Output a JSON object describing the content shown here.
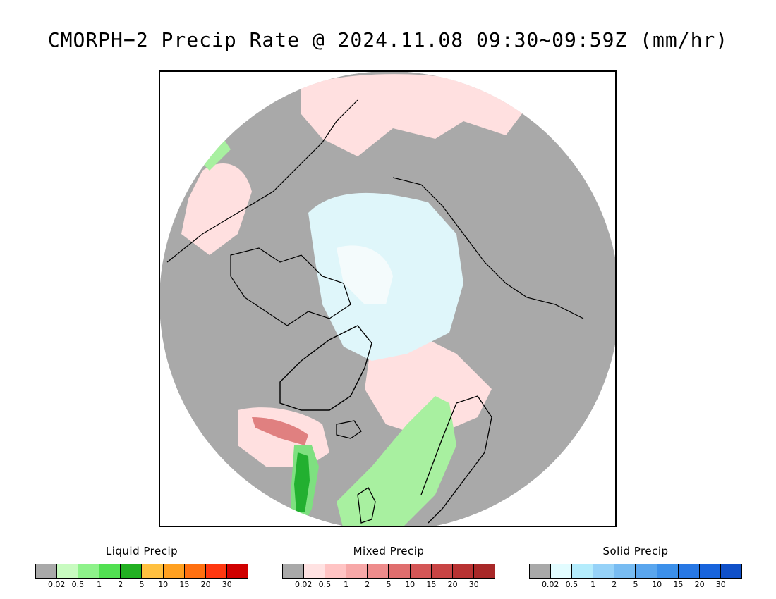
{
  "title": "CMORPH−2 Precip Rate @ 2024.11.08 09:30~09:59Z (mm/hr)",
  "map": {
    "projection": "polar stereographic (north)",
    "colors": {
      "no_precip": "#a9a9a9",
      "mixed_light": "#ffe0e0",
      "solid_light": "#dff6fa",
      "solid_very_light": "#f4fbfc",
      "liquid_light": "#a8f0a0",
      "liquid_mid": "#7ee080",
      "liquid_heavy": "#22b030",
      "mixed_mid": "#f4b0b0",
      "mixed_heavy": "#e08080",
      "coastline": "#000000"
    }
  },
  "legends": [
    {
      "title": "Liquid Precip",
      "colors": [
        "#a9a9a9",
        "#c8fbc0",
        "#8ef28a",
        "#52e052",
        "#22b022",
        "#ffc040",
        "#ffa020",
        "#ff7010",
        "#ff3810",
        "#d00000"
      ],
      "ticks": [
        "0.02",
        "0.5",
        "1",
        "2",
        "5",
        "10",
        "15",
        "20",
        "30"
      ]
    },
    {
      "title": "Mixed Precip",
      "colors": [
        "#a9a9a9",
        "#ffe2e2",
        "#ffc4c4",
        "#f7a8a8",
        "#ee8c8c",
        "#e06e6e",
        "#d45656",
        "#c84444",
        "#b83232",
        "#a82828"
      ],
      "ticks": [
        "0.02",
        "0.5",
        "1",
        "2",
        "5",
        "10",
        "15",
        "20",
        "30"
      ]
    },
    {
      "title": "Solid Precip",
      "colors": [
        "#a9a9a9",
        "#e2fcff",
        "#b4ecfc",
        "#96d2f8",
        "#78bcf2",
        "#5aa6ee",
        "#3c90ea",
        "#2878e4",
        "#1864dc",
        "#1050c8"
      ],
      "ticks": [
        "0.02",
        "0.5",
        "1",
        "2",
        "5",
        "10",
        "15",
        "20",
        "30"
      ]
    }
  ]
}
